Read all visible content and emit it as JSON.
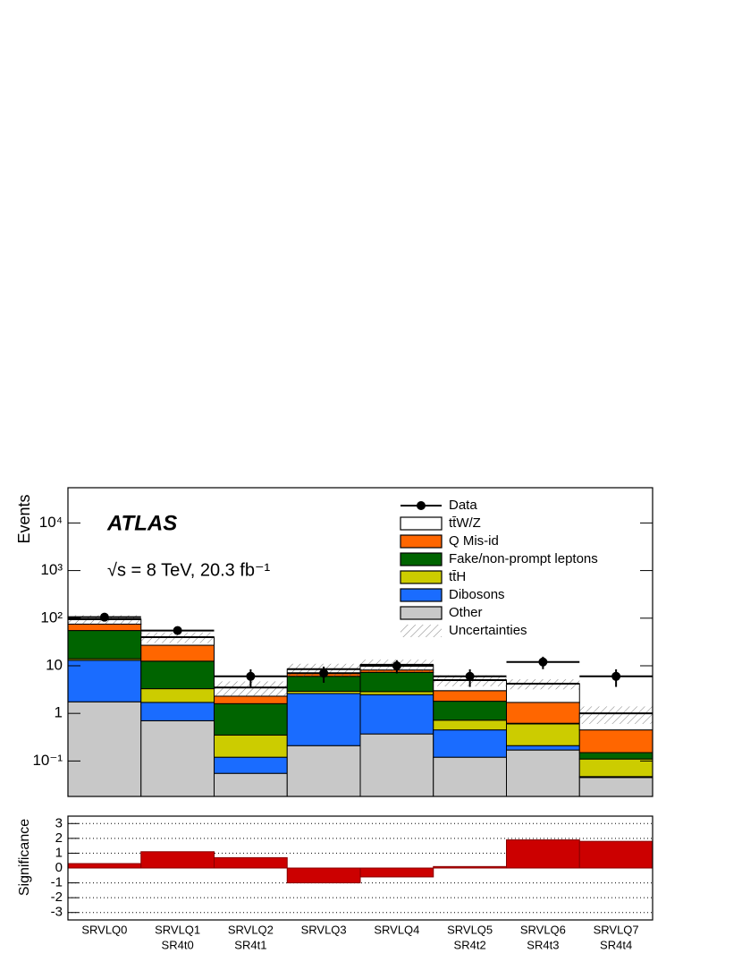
{
  "chart_data": [
    {
      "type": "stacked-bar",
      "log_scale": true,
      "y_label": "Events",
      "annotations": [
        "ATLAS",
        "√s = 8 TeV, 20.3 fb⁻¹"
      ],
      "categories": [
        [
          "SRVLQ0"
        ],
        [
          "SRVLQ1",
          "SR4t0"
        ],
        [
          "SRVLQ2",
          "SR4t1"
        ],
        [
          "SRVLQ3"
        ],
        [
          "SRVLQ4"
        ],
        [
          "SRVLQ5",
          "SR4t2"
        ],
        [
          "SRVLQ6",
          "SR4t3"
        ],
        [
          "SRVLQ7",
          "SR4t4"
        ]
      ],
      "series": [
        {
          "name": "Other",
          "color": "#c8c8c8",
          "values": [
            1.75,
            0.7,
            0.055,
            0.21,
            0.37,
            0.12,
            0.17,
            0.045
          ]
        },
        {
          "name": "Dibosons",
          "color": "#1a6cff",
          "values": [
            11.3,
            1.0,
            0.065,
            2.4,
            2.1,
            0.33,
            0.04,
            0.002
          ]
        },
        {
          "name": "tt̄H",
          "color": "#cccc00",
          "values": [
            1.0,
            1.6,
            0.23,
            0.3,
            0.4,
            0.27,
            0.39,
            0.063
          ]
        },
        {
          "name": "Fake/non-prompt leptons",
          "color": "#006400",
          "values": [
            41,
            9.2,
            1.25,
            3.1,
            4.4,
            1.08,
            0.02,
            0.04
          ]
        },
        {
          "name": "Q Mis-id",
          "color": "#ff6600",
          "values": [
            20,
            14.5,
            0.7,
            1.0,
            0.9,
            1.2,
            1.08,
            0.3
          ]
        },
        {
          "name": "tt̄W/Z",
          "color": "#ffffff",
          "values": [
            20,
            13,
            1.2,
            1.5,
            2.3,
            2.0,
            2.5,
            0.55
          ]
        }
      ],
      "data": {
        "name": "Data",
        "color": "#000000",
        "values": [
          105,
          55,
          6,
          7,
          10,
          6,
          12,
          6
        ],
        "errors": [
          10,
          7,
          2.4,
          2.6,
          3.1,
          2.4,
          3.5,
          2.4
        ]
      },
      "uncertainty": {
        "name": "Uncertainties",
        "values": [
          20,
          10,
          1.2,
          2.5,
          3,
          1.3,
          1,
          0.4
        ]
      },
      "ylim": [
        0.018,
        55000
      ],
      "yticks": [
        {
          "value": 0.1,
          "label": "10⁻¹"
        },
        1,
        10,
        {
          "value": 100,
          "label": "10²"
        },
        {
          "value": 1000,
          "label": "10³"
        },
        {
          "value": 10000,
          "label": "10⁴"
        }
      ]
    },
    {
      "type": "bar",
      "y_label": "Significance",
      "color": "#cc0000",
      "values": [
        0.3,
        1.1,
        0.7,
        -1.0,
        -0.6,
        0.1,
        1.9,
        1.8
      ],
      "ylim": [
        -3.5,
        3.5
      ],
      "yticks": [
        -3,
        -2,
        -1,
        0,
        1,
        2,
        3
      ],
      "grid": true
    }
  ]
}
